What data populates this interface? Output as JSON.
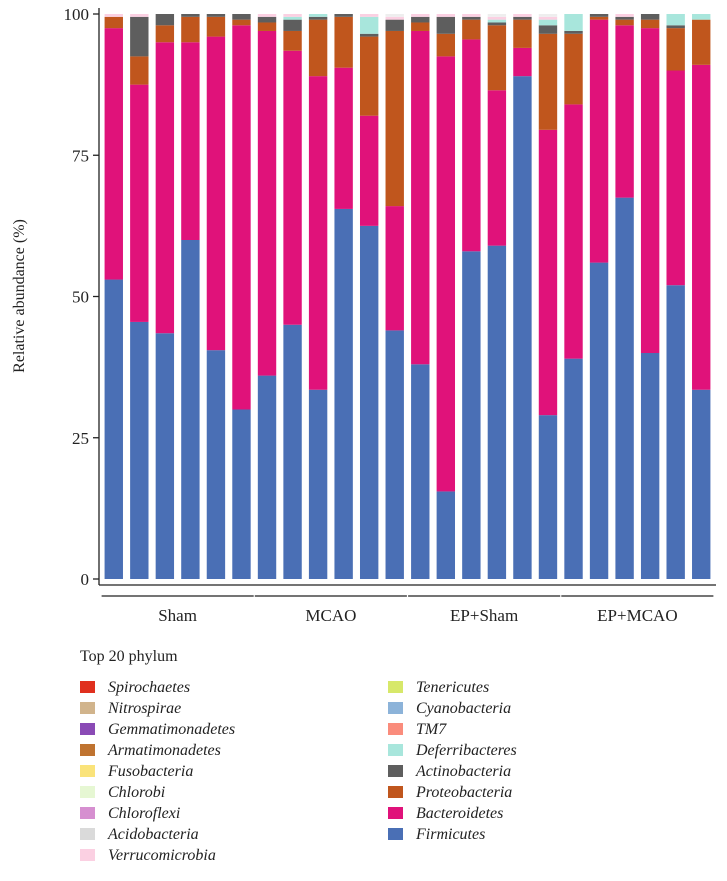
{
  "chart_data": {
    "type": "bar",
    "stacked": true,
    "title": "",
    "xlabel": "",
    "ylabel": "Relative abundance (%)",
    "ylim": [
      0,
      100
    ],
    "yticks": [
      0,
      25,
      50,
      75,
      100
    ],
    "grid": false,
    "groups": [
      {
        "label": "Sham",
        "start": 0,
        "count": 6
      },
      {
        "label": "MCAO",
        "start": 6,
        "count": 6
      },
      {
        "label": "EP+Sham",
        "start": 12,
        "count": 6
      },
      {
        "label": "EP+MCAO",
        "start": 18,
        "count": 6
      }
    ],
    "legend": {
      "title": "Top 20 phylum",
      "placement": "bottom",
      "columns": [
        [
          "Spirochaetes",
          "Nitrospirae",
          "Gemmatimonadetes",
          "Armatimonadetes",
          "Fusobacteria",
          "Chlorobi",
          "Chloroflexi",
          "Acidobacteria",
          "Verrucomicrobia"
        ],
        [
          "Tenericutes",
          "Cyanobacteria",
          "TM7",
          "Deferribacteres",
          "Actinobacteria",
          "Proteobacteria",
          "Bacteroidetes",
          "Firmicutes"
        ]
      ]
    },
    "colors": {
      "Firmicutes": "#4a6fb5",
      "Bacteroidetes": "#e0127a",
      "Proteobacteria": "#c0561d",
      "Actinobacteria": "#5e5e5e",
      "Deferribacteres": "#a8e6dc",
      "TM7": "#fa8c7c",
      "Cyanobacteria": "#8cb3d9",
      "Tenericutes": "#d7e86a",
      "Verrucomicrobia": "#fbd0e2",
      "Acidobacteria": "#dadada",
      "Chloroflexi": "#d68fd0",
      "Chlorobi": "#e6f7d3",
      "Fusobacteria": "#fae37a",
      "Armatimonadetes": "#bf7330",
      "Gemmatimonadetes": "#8a4ab5",
      "Nitrospirae": "#d1b48c",
      "Spirochaetes": "#e0301e"
    },
    "series": [
      {
        "name": "Firmicutes",
        "values": [
          53,
          45.5,
          43.5,
          60,
          40.5,
          30,
          36,
          45,
          33.5,
          65.5,
          62.5,
          44,
          38,
          15.5,
          58,
          59,
          89,
          29,
          39,
          56,
          67.5,
          40,
          52,
          33.5
        ]
      },
      {
        "name": "Bacteroidetes",
        "values": [
          44.5,
          42,
          51.5,
          35,
          55.5,
          68,
          61,
          48.5,
          55.5,
          25,
          19.5,
          22,
          59,
          77,
          37.5,
          27.5,
          5,
          50.5,
          45,
          43,
          30.5,
          57.5,
          38,
          57.5
        ]
      },
      {
        "name": "Proteobacteria",
        "values": [
          2,
          5,
          3,
          4.5,
          3.5,
          1,
          1.5,
          3.5,
          10,
          9,
          14,
          31,
          1.5,
          4,
          3.5,
          11.5,
          5,
          17,
          12.5,
          0.5,
          1,
          1.5,
          7.5,
          8
        ]
      },
      {
        "name": "Actinobacteria",
        "values": [
          0,
          7,
          2,
          0.5,
          0.5,
          1,
          1,
          2,
          0.5,
          0.5,
          0.5,
          2,
          1,
          3,
          0.5,
          0.5,
          0.5,
          1.5,
          0.5,
          0.5,
          0.5,
          1,
          0.5,
          0
        ]
      },
      {
        "name": "Deferribacteres",
        "values": [
          0,
          0,
          0,
          0,
          0,
          0,
          0,
          0.5,
          0.5,
          0,
          3,
          0,
          0,
          0,
          0,
          0.5,
          0,
          1,
          3,
          0,
          0,
          0,
          2,
          1
        ]
      },
      {
        "name": "Verrucomicrobia",
        "values": [
          0.5,
          0.5,
          0,
          0,
          0,
          0,
          0.5,
          0.5,
          0,
          0,
          0.5,
          0.5,
          0.5,
          0.5,
          0.5,
          0.5,
          0.5,
          0.5,
          0,
          0,
          0.5,
          0,
          0,
          0
        ]
      }
    ]
  }
}
